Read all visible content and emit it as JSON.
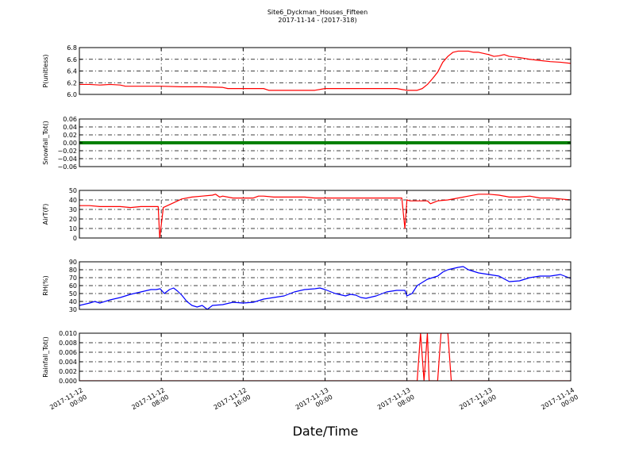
{
  "figure": {
    "title": "Site6_Dyckman_Houses_Fifteen",
    "subtitle": "2017-11-14 - (2017-318)",
    "xlabel": "Date/Time",
    "x_tick_labels": [
      [
        "2017-11-12",
        "00:00"
      ],
      [
        "2017-11-12",
        "08:00"
      ],
      [
        "2017-11-12",
        "16:00"
      ],
      [
        "2017-11-13",
        "00:00"
      ],
      [
        "2017-11-13",
        "08:00"
      ],
      [
        "2017-11-13",
        "16:00"
      ],
      [
        "2017-11-14",
        "00:00"
      ]
    ]
  },
  "chart_data": [
    {
      "type": "line",
      "ylabel": "P(unitless)",
      "x_unit": "hours since 2017-11-12 00:00",
      "xlim": [
        0,
        48
      ],
      "ylim": [
        6.0,
        6.8
      ],
      "yticks": [
        6.0,
        6.2,
        6.4,
        6.6,
        6.8
      ],
      "ytick_labels": [
        "6.0",
        "6.2",
        "6.4",
        "6.6",
        "6.8"
      ],
      "grid": true,
      "series": [
        {
          "color": "#ff0000",
          "x": [
            0,
            1,
            2,
            3,
            4,
            4.5,
            5,
            6,
            8,
            10,
            12,
            14,
            14.5,
            16,
            18,
            18.5,
            20,
            22,
            23,
            24,
            26,
            28,
            30,
            31,
            32,
            33,
            33.5,
            34,
            34.5,
            35,
            35.5,
            36,
            36.5,
            37,
            38,
            38.5,
            39,
            40,
            40.5,
            41,
            41.5,
            42,
            43,
            44,
            45,
            46,
            47,
            48
          ],
          "y": [
            6.17,
            6.17,
            6.16,
            6.17,
            6.16,
            6.14,
            6.14,
            6.14,
            6.14,
            6.13,
            6.13,
            6.12,
            6.1,
            6.1,
            6.1,
            6.07,
            6.07,
            6.07,
            6.07,
            6.1,
            6.1,
            6.1,
            6.1,
            6.1,
            6.07,
            6.07,
            6.1,
            6.17,
            6.27,
            6.38,
            6.55,
            6.65,
            6.72,
            6.74,
            6.74,
            6.72,
            6.72,
            6.68,
            6.65,
            6.66,
            6.68,
            6.65,
            6.63,
            6.6,
            6.58,
            6.56,
            6.55,
            6.53
          ]
        }
      ]
    },
    {
      "type": "line",
      "ylabel": "Snowfall_Tot()",
      "x_unit": "hours since 2017-11-12 00:00",
      "xlim": [
        0,
        48
      ],
      "ylim": [
        -0.06,
        0.06
      ],
      "yticks": [
        -0.06,
        -0.04,
        -0.02,
        0.0,
        0.02,
        0.04,
        0.06
      ],
      "ytick_labels": [
        "−0.06",
        "−0.04",
        "−0.02",
        "0.00",
        "0.02",
        "0.04",
        "0.06"
      ],
      "grid": true,
      "series": [
        {
          "color": "#008000",
          "x": [
            0,
            48
          ],
          "y": [
            0,
            0
          ]
        }
      ]
    },
    {
      "type": "line",
      "ylabel": "AirT(F)",
      "x_unit": "hours since 2017-11-12 00:00",
      "xlim": [
        0,
        48
      ],
      "ylim": [
        0,
        50
      ],
      "yticks": [
        0,
        10,
        20,
        30,
        40,
        50
      ],
      "ytick_labels": [
        "0",
        "10",
        "20",
        "30",
        "40",
        "50"
      ],
      "grid": true,
      "series": [
        {
          "color": "#ff0000",
          "x": [
            0,
            1,
            2,
            3,
            4,
            5,
            6,
            7,
            7.7,
            7.85,
            8.2,
            9,
            10,
            11,
            12,
            13,
            13.3,
            13.7,
            14,
            15,
            16,
            17,
            17.5,
            18,
            19,
            20,
            21,
            22,
            23,
            24,
            26,
            28,
            30,
            31.5,
            31.8,
            32,
            32.3,
            33,
            34,
            34.3,
            35,
            36,
            37,
            38,
            39,
            40,
            41,
            42,
            43,
            44,
            45,
            46,
            47,
            48
          ],
          "y": [
            34,
            34,
            33,
            33,
            33,
            32,
            33,
            33,
            33,
            0,
            32,
            36,
            41,
            43,
            44,
            45,
            46,
            43,
            44,
            42,
            42,
            42,
            44,
            44,
            43,
            43,
            43,
            43,
            42,
            42,
            42,
            42,
            42,
            42,
            10,
            40,
            39,
            39,
            39,
            36,
            39,
            40,
            42,
            44,
            46,
            46,
            45,
            43,
            43,
            44,
            42,
            42,
            41,
            40
          ]
        }
      ]
    },
    {
      "type": "line",
      "ylabel": "RH(%)",
      "x_unit": "hours since 2017-11-12 00:00",
      "xlim": [
        0,
        48
      ],
      "ylim": [
        30,
        90
      ],
      "yticks": [
        30,
        40,
        50,
        60,
        70,
        80,
        90
      ],
      "ytick_labels": [
        "30",
        "40",
        "50",
        "60",
        "70",
        "80",
        "90"
      ],
      "grid": true,
      "series": [
        {
          "color": "#0000ff",
          "x": [
            0,
            1,
            1.5,
            2,
            3,
            4,
            5,
            6,
            7,
            7.5,
            7.9,
            8.3,
            8.8,
            9.2,
            9.6,
            10,
            10.5,
            11,
            11.5,
            12,
            12.5,
            13,
            14,
            15,
            16,
            17,
            18,
            19,
            20,
            21,
            22,
            23,
            23.5,
            24,
            25,
            26,
            26.5,
            27,
            27.5,
            28,
            29,
            30,
            31,
            31.8,
            32,
            32.5,
            33,
            34,
            35,
            35.5,
            36,
            37,
            37.5,
            38,
            39,
            40,
            41,
            42,
            43,
            44,
            45,
            46,
            47,
            48
          ],
          "y": [
            35,
            38,
            40,
            38,
            42,
            45,
            49,
            52,
            55,
            55,
            56,
            50,
            55,
            57,
            53,
            48,
            40,
            35,
            33,
            35,
            30,
            35,
            36,
            39,
            38,
            39,
            43,
            45,
            47,
            52,
            55,
            56,
            57,
            55,
            50,
            47,
            49,
            48,
            45,
            44,
            47,
            52,
            54,
            54,
            47,
            50,
            60,
            68,
            72,
            77,
            80,
            83,
            84,
            80,
            76,
            74,
            72,
            65,
            66,
            70,
            72,
            72,
            74,
            69
          ]
        }
      ]
    },
    {
      "type": "line",
      "ylabel": "Rainfall_Tot()",
      "x_unit": "hours since 2017-11-12 00:00",
      "xlim": [
        0,
        48
      ],
      "ylim": [
        0,
        0.01
      ],
      "yticks": [
        0,
        0.002,
        0.004,
        0.006,
        0.008,
        0.01
      ],
      "ytick_labels": [
        "0.000",
        "0.002",
        "0.004",
        "0.006",
        "0.008",
        "0.010"
      ],
      "grid": true,
      "series": [
        {
          "color": "#ff0000",
          "x": [
            0,
            33,
            33.33,
            33.67,
            34,
            34.17,
            34.5,
            34.83,
            35,
            35.33,
            35.67,
            36,
            36.33,
            48
          ],
          "y": [
            0,
            0,
            0.01,
            0,
            0.01,
            0,
            0,
            0,
            0,
            0.01,
            0.01,
            0.01,
            0,
            0
          ]
        }
      ]
    }
  ]
}
